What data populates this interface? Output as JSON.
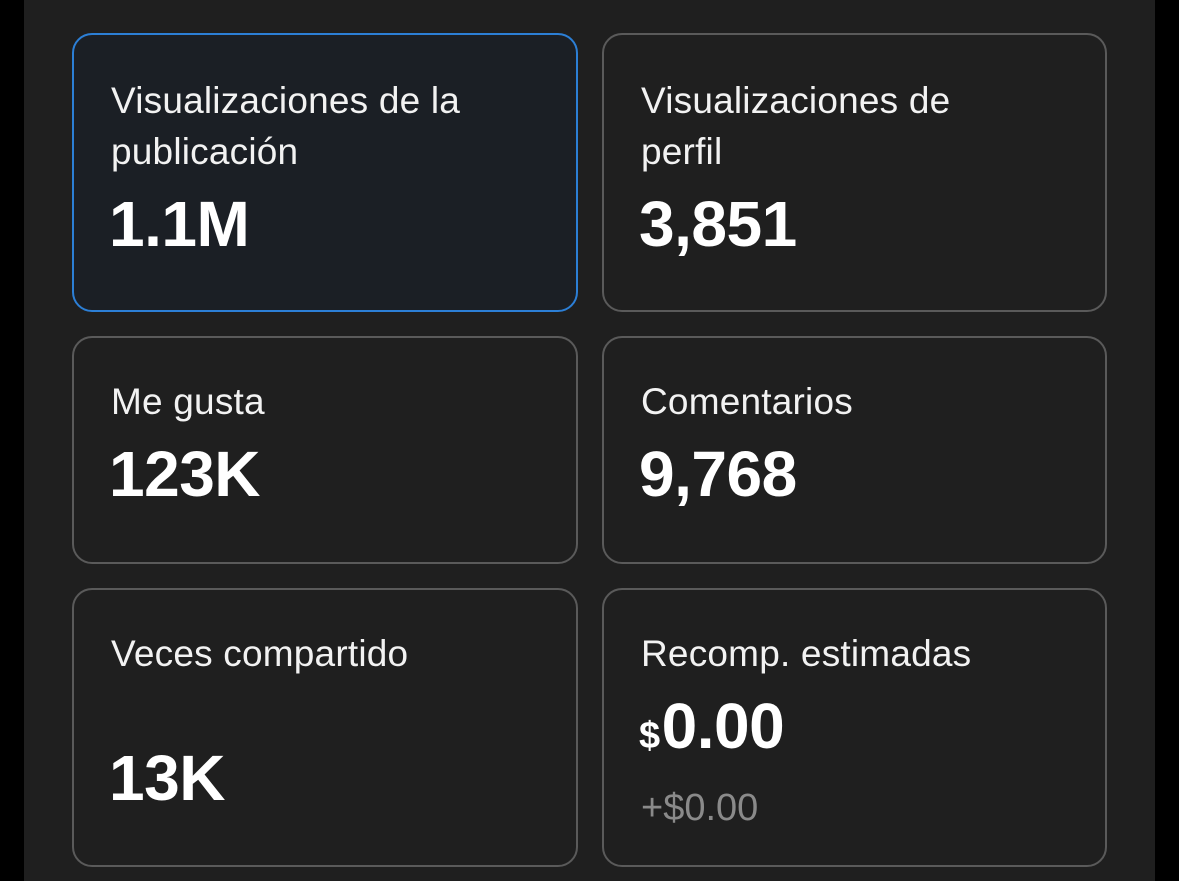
{
  "cards": [
    {
      "label": "Visualizaciones de la\npublicación",
      "value": "1.1M",
      "selected": true
    },
    {
      "label": "Visualizaciones de\nperfil",
      "value": "3,851"
    },
    {
      "label": "Me gusta",
      "value": "123K"
    },
    {
      "label": "Comentarios",
      "value": "9,768"
    },
    {
      "label": "Veces compartido",
      "value": "13K"
    },
    {
      "label": "Recomp. estimadas",
      "currency": "$",
      "value": "0.00",
      "delta": "+$0.00"
    }
  ],
  "colors": {
    "background": "#1f1f1f",
    "card_border": "#5a5a5a",
    "selected_border": "#2c7fd6",
    "text": "#ffffff",
    "muted_text": "#8a8a8a"
  }
}
